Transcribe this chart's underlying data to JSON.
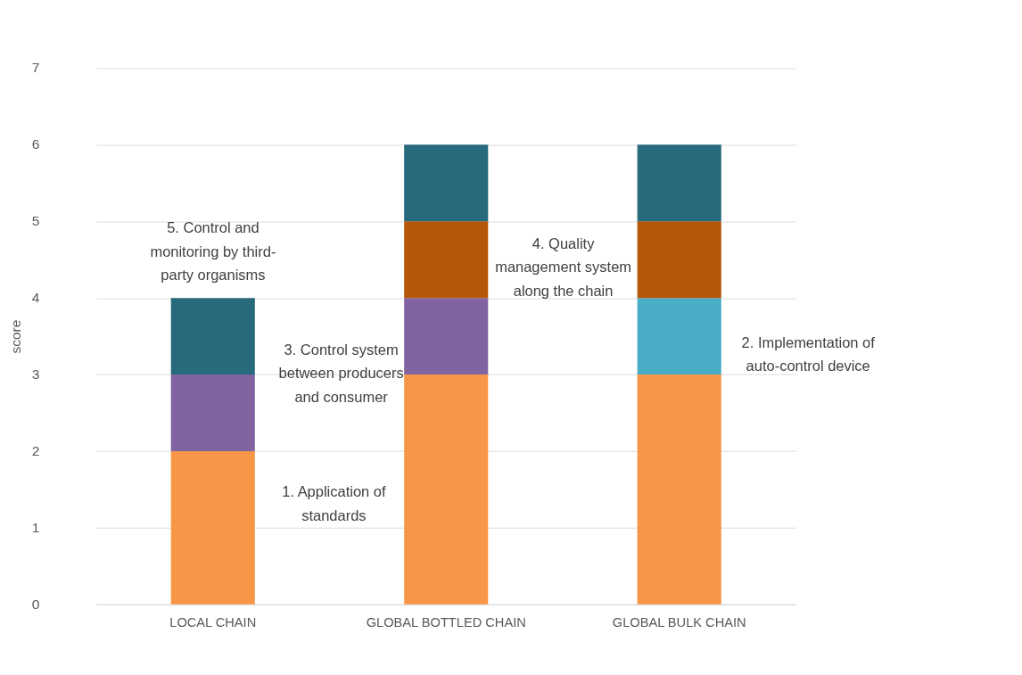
{
  "chart_data": {
    "type": "bar",
    "stacked": true,
    "ylabel": "score",
    "categories": [
      "LOCAL CHAIN",
      "GLOBAL BOTTLED CHAIN",
      "GLOBAL BULK CHAIN"
    ],
    "series": [
      {
        "name": "1. Application of standards",
        "color": "#f79646",
        "values": [
          2,
          3,
          3
        ]
      },
      {
        "name": "2. Implementation of auto-control device",
        "color": "#4bacc6",
        "values": [
          null,
          null,
          1
        ]
      },
      {
        "name": "3. Control system between producers and consumer",
        "color": "#8064a2",
        "values": [
          1,
          1,
          null
        ]
      },
      {
        "name": "4. Quality management system along the chain",
        "color": "#b65708",
        "values": [
          null,
          1,
          1
        ]
      },
      {
        "name": "5. Control and monitoring by third-party organisms",
        "color": "#276a7c",
        "values": [
          1,
          1,
          1
        ]
      }
    ],
    "ylim": [
      0,
      7
    ],
    "yticks": [
      0,
      1,
      2,
      3,
      4,
      5,
      6,
      7
    ],
    "grid": "y",
    "legend": false
  }
}
